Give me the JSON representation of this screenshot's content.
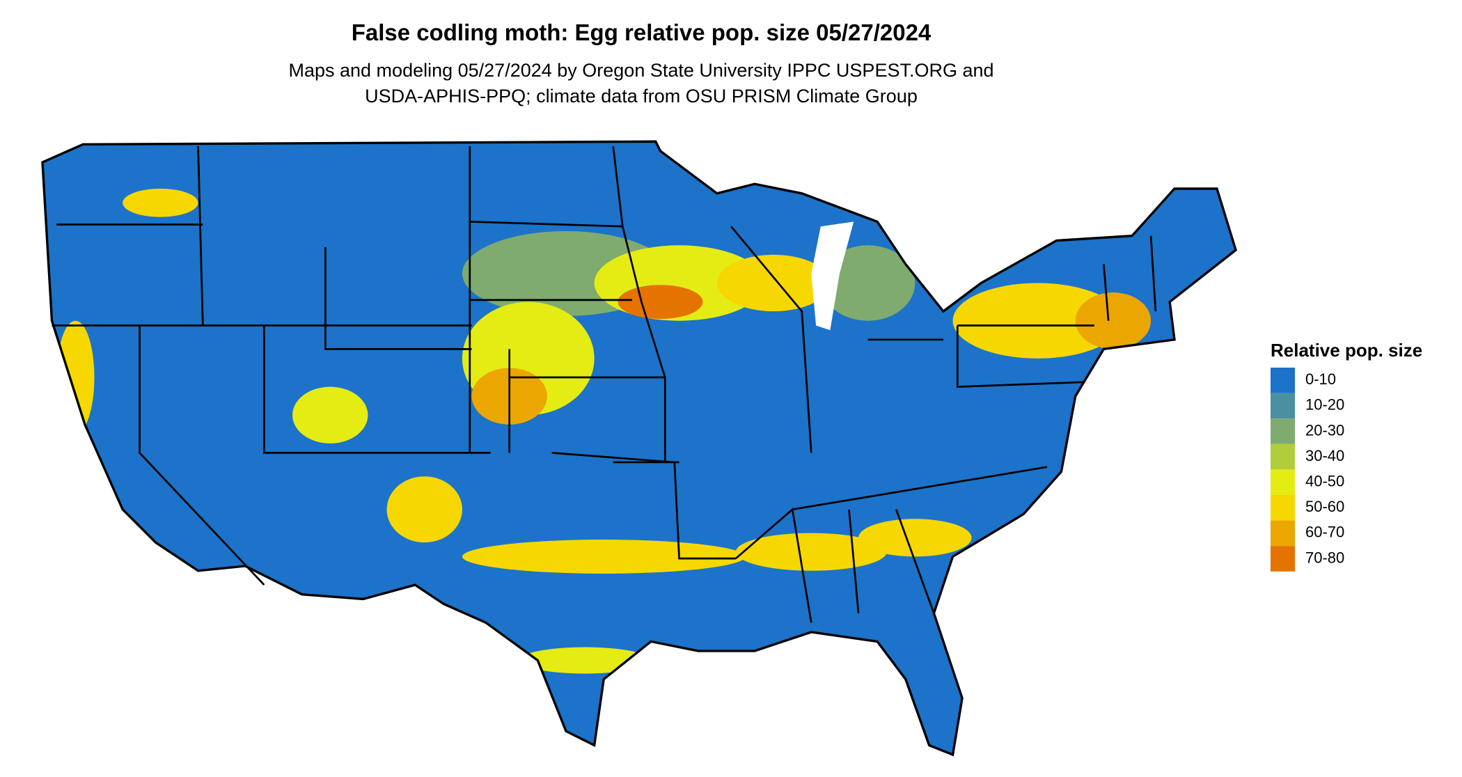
{
  "title": "False codling moth: Egg relative pop. size 05/27/2024",
  "subtitle": [
    "Maps and modeling 05/27/2024 by Oregon State University IPPC USPEST.ORG and",
    "USDA-APHIS-PPQ; climate data from OSU PRISM Climate Group"
  ],
  "legend": {
    "title": "Relative pop. size",
    "items": [
      {
        "label": "0-10",
        "color": "#1c73c9"
      },
      {
        "label": "10-20",
        "color": "#4a90a0"
      },
      {
        "label": "20-30",
        "color": "#7fab6e"
      },
      {
        "label": "30-40",
        "color": "#b2cd3c"
      },
      {
        "label": "40-50",
        "color": "#e5ec14"
      },
      {
        "label": "50-60",
        "color": "#f6d800"
      },
      {
        "label": "60-70",
        "color": "#eca600"
      },
      {
        "label": "70-80",
        "color": "#e57300"
      }
    ]
  }
}
